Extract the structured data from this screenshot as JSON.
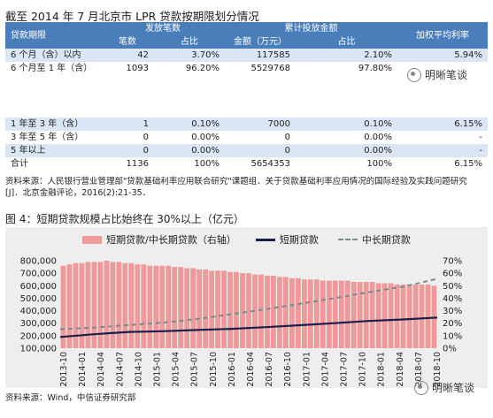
{
  "table1": {
    "title": "截至 2014 年 7 月北京市 LPR 贷款按期限划分情况",
    "headers": {
      "term": "贷款期限",
      "count_group": "发放笔数",
      "amount_group": "累计投放金额",
      "rate": "加权平均利率",
      "count": "笔数",
      "share": "占比",
      "amount": "金额（万元）",
      "share2": "占比"
    },
    "rows": [
      {
        "term": "6 个月（含）以内",
        "count": "42",
        "count_share": "3.70%",
        "amount": "117585",
        "amount_share": "2.10%",
        "rate": "5.94%"
      },
      {
        "term": "6 个月至 1 年（含）",
        "count": "1093",
        "count_share": "96.20%",
        "amount": "5529768",
        "amount_share": "97.80%",
        "rate": ""
      }
    ]
  },
  "table2": {
    "rows": [
      {
        "term": "1 年至 3 年（含）",
        "count": "1",
        "count_share": "0.10%",
        "amount": "7000",
        "amount_share": "0.10%",
        "rate": "6.15%"
      },
      {
        "term": "3 年至 5 年（含）",
        "count": "0",
        "count_share": "0.00%",
        "amount": "0",
        "amount_share": "0.00%",
        "rate": "-"
      },
      {
        "term": "5 年以上",
        "count": "0",
        "count_share": "0.00%",
        "amount": "0",
        "amount_share": "0.00%",
        "rate": "-"
      },
      {
        "term": "合计",
        "count": "1136",
        "count_share": "100%",
        "amount": "5654353",
        "amount_share": "100%",
        "rate": "6.15%"
      }
    ],
    "source_line1": "资料来源：人民银行营业管理部\"贷款基础利率应用联合研究\"课题组．关于贷款基础利率应用情况的国际经验及实践问题研究",
    "source_line2": "[J]．北京金融评论，2016(2):21-35．"
  },
  "watermark": "明晰笔谈",
  "figure": {
    "title": "图 4：短期贷款规模占比始终在 30%以上（亿元）",
    "source": "资料来源：Wind，中信证券研究部"
  },
  "chart_data": {
    "type": "bar+line",
    "legend": [
      "短期贷款/中长期贷款（右轴）",
      "短期贷款",
      "中长期贷款"
    ],
    "left_ticks": [
      "800,000",
      "700,000",
      "600,000",
      "500,000",
      "400,000",
      "300,000",
      "200,000",
      "100,000"
    ],
    "right_ticks": [
      "70%",
      "60%",
      "50%",
      "40%",
      "30%",
      "20%",
      "10%",
      "0%"
    ],
    "left_range": [
      100000,
      800000
    ],
    "right_range": [
      0,
      0.7
    ],
    "x_labels": [
      "2013-10",
      "2014-01",
      "2014-04",
      "2014-07",
      "2014-10",
      "2015-01",
      "2015-04",
      "2015-07",
      "2015-10",
      "2016-01",
      "2016-04",
      "2016-07",
      "2016-10",
      "2017-01",
      "2017-04",
      "2017-07",
      "2017-10",
      "2018-01",
      "2018-04",
      "2018-07",
      "2018-10"
    ],
    "ratio_pct": [
      66,
      67,
      68,
      68,
      69,
      69,
      69,
      70,
      69,
      69,
      68,
      68,
      67,
      67,
      66,
      66,
      66,
      66,
      65,
      65,
      64,
      64,
      63,
      63,
      62,
      62,
      62,
      61,
      61,
      60,
      60,
      59,
      59,
      58,
      58,
      57,
      57,
      56,
      56,
      55,
      55,
      55,
      54,
      54,
      54,
      54,
      54,
      53,
      53,
      53,
      53,
      52,
      52,
      52,
      51,
      51,
      51,
      51,
      51,
      51,
      50
    ],
    "short_term": [
      190000,
      212000,
      230000,
      236000,
      246000,
      255000,
      268000,
      284000,
      300000,
      318000,
      330000,
      345000
    ],
    "long_term": [
      252000,
      265000,
      285000,
      305000,
      333000,
      372000,
      412000,
      455000,
      500000,
      548000,
      592000,
      655000
    ],
    "colors": {
      "bars": "#ef9a9a",
      "short": "#1a1f4d",
      "long": "#7a8a8a"
    }
  }
}
